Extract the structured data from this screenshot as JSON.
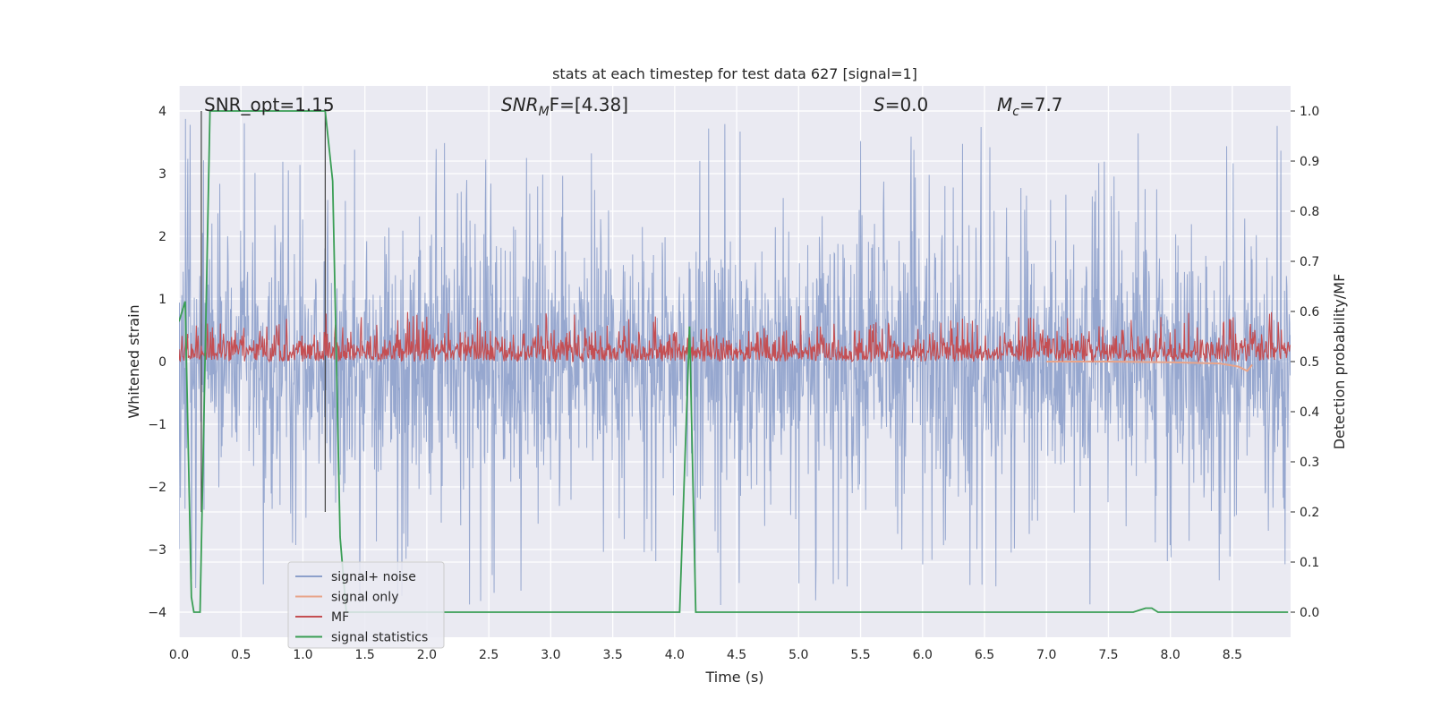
{
  "chart_data": {
    "type": "line",
    "title": "stats at each timestep for test data 627 [signal=1]",
    "xlabel": "Time (s)",
    "ylabel_left": "Whitened strain",
    "ylabel_right": "Detection probability/MF",
    "xlim": [
      0.0,
      8.97
    ],
    "ylim_left": [
      -4.4,
      4.4
    ],
    "ylim_right": [
      -0.05,
      1.05
    ],
    "xticks": [
      0.0,
      0.5,
      1.0,
      1.5,
      2.0,
      2.5,
      3.0,
      3.5,
      4.0,
      4.5,
      5.0,
      5.5,
      6.0,
      6.5,
      7.0,
      7.5,
      8.0,
      8.5
    ],
    "xtick_labels": [
      "0.0",
      "0.5",
      "1.0",
      "1.5",
      "2.0",
      "2.5",
      "3.0",
      "3.5",
      "4.0",
      "4.5",
      "5.0",
      "5.5",
      "6.0",
      "6.5",
      "7.0",
      "7.5",
      "8.0",
      "8.5"
    ],
    "yticks_left": [
      -4,
      -3,
      -2,
      -1,
      0,
      1,
      2,
      3,
      4
    ],
    "ytick_labels_left": [
      "−4",
      "−3",
      "−2",
      "−1",
      "0",
      "1",
      "2",
      "3",
      "4"
    ],
    "yticks_right": [
      0.0,
      0.1,
      0.2,
      0.3,
      0.4,
      0.5,
      0.6,
      0.7,
      0.8,
      0.9,
      1.0
    ],
    "ytick_labels_right": [
      "0.0",
      "0.1",
      "0.2",
      "0.3",
      "0.4",
      "0.5",
      "0.6",
      "0.7",
      "0.8",
      "0.9",
      "1.0"
    ],
    "grid": true,
    "legend_position": "lower-left",
    "annotations": {
      "snr_opt": "SNR_opt=1.15",
      "snr_mf_base": "SNR",
      "snr_mf_sub": "M",
      "snr_mf_rest": "F=[4.38]",
      "s_base": "S",
      "s_rest": "=0.0",
      "mc_base": "M",
      "mc_sub": "c",
      "mc_rest": "=7.7"
    },
    "vertical_markers_x": [
      0.18,
      1.18
    ],
    "series": [
      {
        "name": "signal+ noise",
        "axis": "left",
        "color": "#8da0cb",
        "style": "noise",
        "amplitude_typical": 1.5,
        "amplitude_peak": 3.9
      },
      {
        "name": "signal only",
        "axis": "left",
        "color": "#e8a48a",
        "x": [
          7.0,
          7.5,
          8.0,
          8.4,
          8.55,
          8.62,
          8.66
        ],
        "y": [
          0.0,
          0.0,
          -0.01,
          -0.03,
          -0.08,
          -0.15,
          -0.05
        ]
      },
      {
        "name": "MF",
        "axis": "right",
        "color": "#c44e52",
        "style": "noise",
        "baseline": 0.5,
        "amplitude_typical": 0.05,
        "amplitude_peak": 0.1
      },
      {
        "name": "signal statistics",
        "axis": "right",
        "color": "#3a9e55",
        "x": [
          0.0,
          0.05,
          0.1,
          0.12,
          0.17,
          0.25,
          0.3,
          1.0,
          1.18,
          1.24,
          1.3,
          1.35,
          1.4,
          4.04,
          4.12,
          4.17,
          4.5,
          7.7,
          7.8,
          7.85,
          7.9,
          8.95
        ],
        "y": [
          0.58,
          0.62,
          0.03,
          0.0,
          0.0,
          1.0,
          1.0,
          1.0,
          1.0,
          0.86,
          0.15,
          0.0,
          0.0,
          0.0,
          0.57,
          0.0,
          0.0,
          0.0,
          0.008,
          0.008,
          0.0,
          0.0
        ]
      }
    ]
  }
}
